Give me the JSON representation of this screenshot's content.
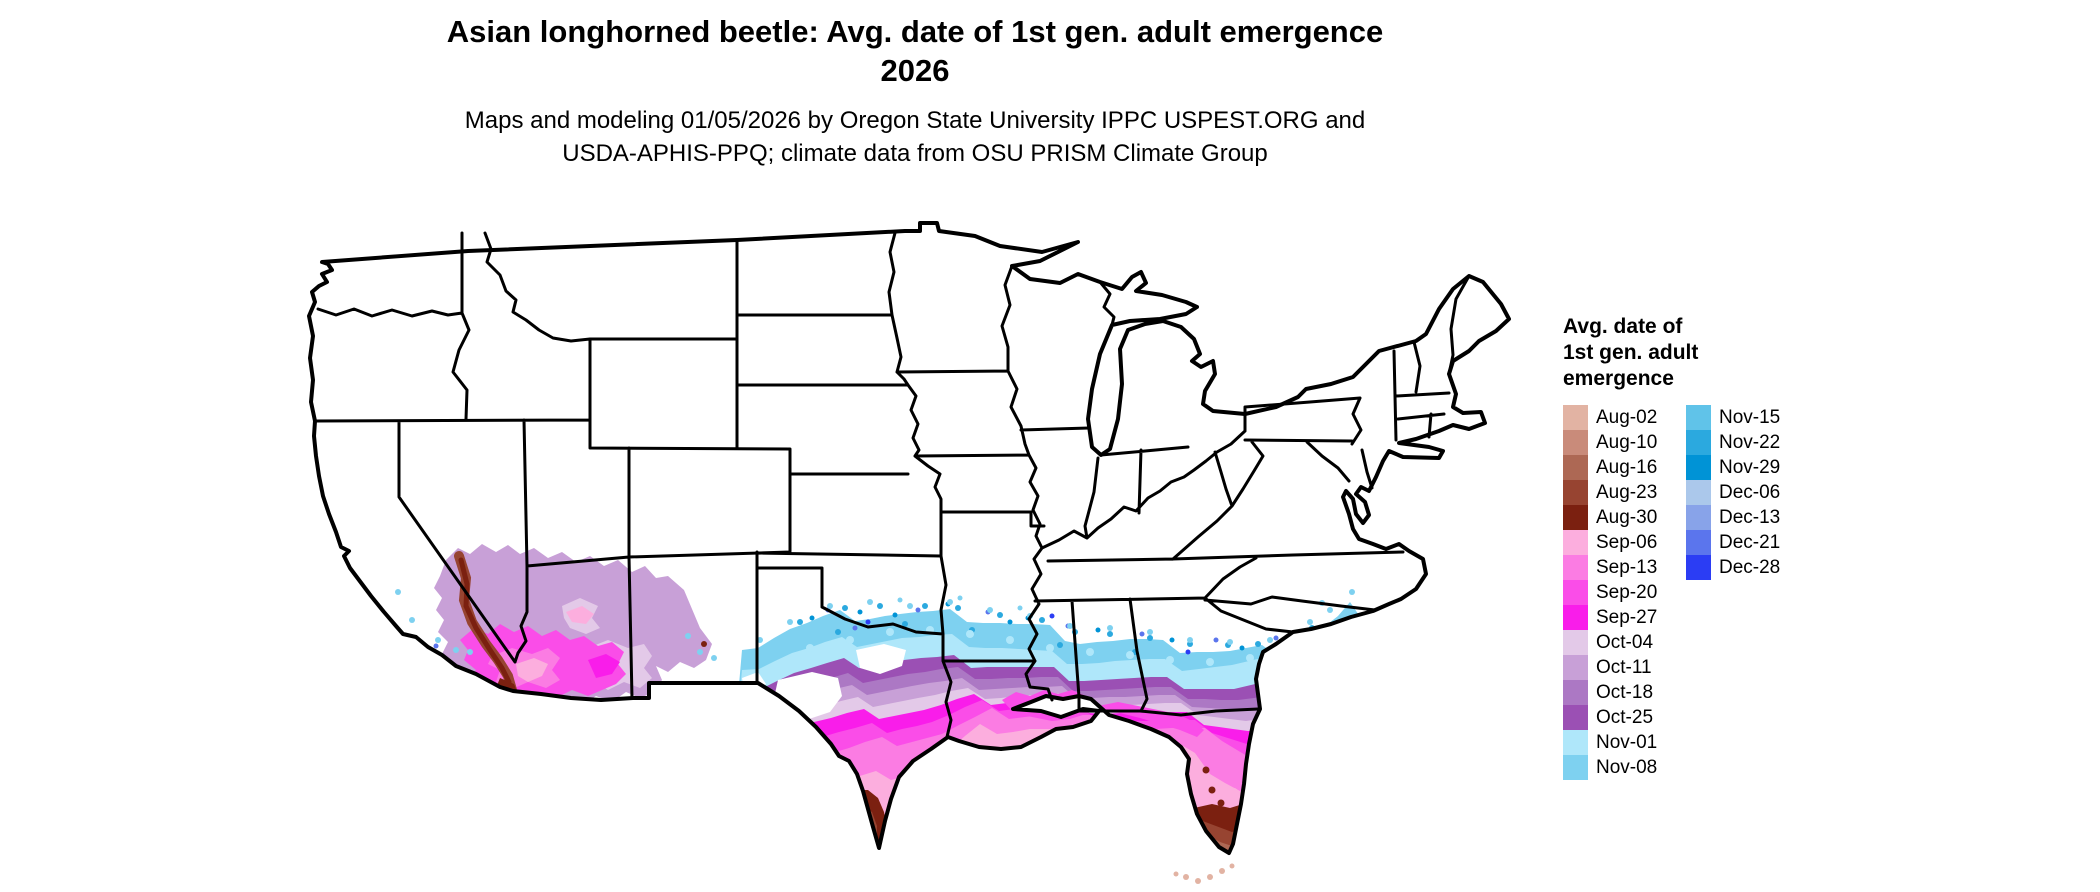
{
  "title": {
    "line1": "Asian longhorned beetle: Avg. date of 1st gen. adult emergence",
    "line2": "2026"
  },
  "subtitle": {
    "line1": "Maps and modeling 01/05/2026 by Oregon State University IPPC USPEST.ORG and",
    "line2": "USDA-APHIS-PPQ; climate data from OSU PRISM Climate Group"
  },
  "legend": {
    "title_lines": [
      "Avg. date of",
      "1st gen. adult",
      "emergence"
    ],
    "column1": [
      {
        "label": "Aug-02",
        "color": "#e2b3a3"
      },
      {
        "label": "Aug-10",
        "color": "#c98b7a"
      },
      {
        "label": "Aug-16",
        "color": "#ad6854"
      },
      {
        "label": "Aug-23",
        "color": "#974431"
      },
      {
        "label": "Aug-30",
        "color": "#7b2010"
      },
      {
        "label": "Sep-06",
        "color": "#fcaede"
      },
      {
        "label": "Sep-13",
        "color": "#fb7ce3"
      },
      {
        "label": "Sep-20",
        "color": "#fa4de8"
      },
      {
        "label": "Sep-27",
        "color": "#f91dea"
      },
      {
        "label": "Oct-04",
        "color": "#e3c9e8"
      },
      {
        "label": "Oct-11",
        "color": "#c8a0d7"
      },
      {
        "label": "Oct-18",
        "color": "#ac78c4"
      },
      {
        "label": "Oct-25",
        "color": "#9b50b4"
      },
      {
        "label": "Nov-01",
        "color": "#afe7fa"
      },
      {
        "label": "Nov-08",
        "color": "#7ed1f0"
      }
    ],
    "column2": [
      {
        "label": "Nov-15",
        "color": "#60c3e9"
      },
      {
        "label": "Nov-22",
        "color": "#2ba9df"
      },
      {
        "label": "Nov-29",
        "color": "#0093d6"
      },
      {
        "label": "Dec-06",
        "color": "#abc8eb"
      },
      {
        "label": "Dec-13",
        "color": "#88a3e9"
      },
      {
        "label": "Dec-21",
        "color": "#5b75ed"
      },
      {
        "label": "Dec-28",
        "color": "#2b3df4"
      }
    ]
  },
  "colors": {
    "aug02": "#e2b3a3",
    "aug10": "#c98b7a",
    "aug16": "#ad6854",
    "aug23": "#974431",
    "aug30": "#7b2010",
    "sep06": "#fcaede",
    "sep13": "#fb7ce3",
    "sep20": "#fa4de8",
    "sep27": "#f91dea",
    "oct04": "#e3c9e8",
    "oct11": "#c8a0d7",
    "oct18": "#ac78c4",
    "oct25": "#9b50b4",
    "nov01": "#afe7fa",
    "nov08": "#7ed1f0",
    "nov15": "#60c3e9",
    "nov22": "#2ba9df",
    "nov29": "#0093d6",
    "dec06": "#abc8eb",
    "dec13": "#88a3e9",
    "dec21": "#5b75ed",
    "dec28": "#2b3df4",
    "map_outline": "#000000",
    "map_background": "#ffffff"
  }
}
